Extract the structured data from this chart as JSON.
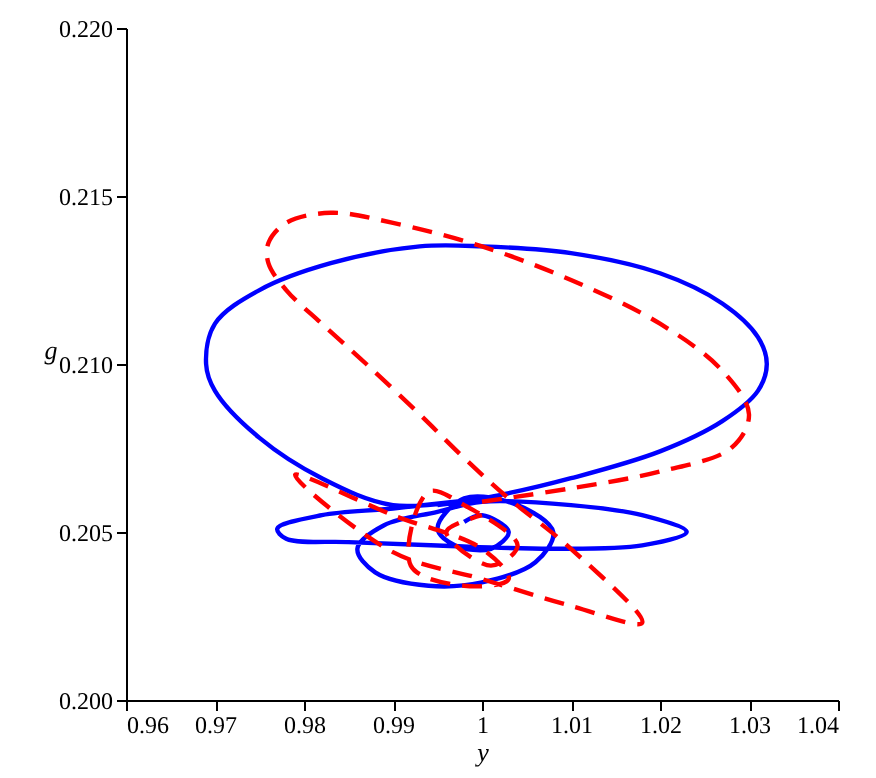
{
  "chart_data": {
    "type": "line",
    "xlabel": "y",
    "ylabel": "g",
    "grid": false,
    "marker": "none",
    "xlim": [
      0.96,
      1.04
    ],
    "xticks": [
      0.96,
      0.97,
      0.98,
      0.99,
      1,
      1.01,
      1.02,
      1.03,
      1.04
    ],
    "ylim": [
      0.2,
      0.22
    ],
    "yticks": [
      {
        "value": 0.2,
        "label": "0.200"
      },
      {
        "value": 0.205,
        "label": "0.205"
      },
      {
        "value": 0.21,
        "label": "0.210"
      },
      {
        "value": 0.215,
        "label": "0.215"
      },
      {
        "value": 0.22,
        "label": "0.220"
      }
    ],
    "series": [
      {
        "color": "#0000ff",
        "line_style": "solid",
        "x": [
          0.998,
          1.0,
          1.003,
          1.001,
          0.997,
          0.995,
          0.998,
          1.004,
          1.008,
          1.006,
          1.0,
          0.994,
          0.988,
          0.986,
          0.989,
          0.995,
          1.0,
          1.01,
          1.018,
          1.023,
          1.018,
          1.008,
          0.995,
          0.985,
          0.978,
          0.977,
          0.982,
          0.99,
          1.0,
          0.99,
          0.982,
          0.975,
          0.97,
          0.969,
          0.97,
          0.975,
          0.983,
          0.993,
          1.0,
          1.01,
          1.02,
          1.027,
          1.031,
          1.032,
          1.031,
          1.027,
          1.02,
          1.01,
          1.002,
          0.995
        ],
        "values": [
          0.2053,
          0.2055,
          0.205,
          0.2045,
          0.2046,
          0.2051,
          0.206,
          0.2058,
          0.205,
          0.2041,
          0.2035,
          0.2034,
          0.2038,
          0.2045,
          0.2052,
          0.2056,
          0.2059,
          0.2058,
          0.2055,
          0.205,
          0.2046,
          0.2045,
          0.2046,
          0.2047,
          0.2048,
          0.2051,
          0.2055,
          0.2057,
          0.206,
          0.2058,
          0.2066,
          0.2078,
          0.2092,
          0.21,
          0.2112,
          0.2122,
          0.213,
          0.2135,
          0.2135,
          0.2133,
          0.2127,
          0.2118,
          0.2108,
          0.21,
          0.2092,
          0.2083,
          0.2074,
          0.2066,
          0.2061,
          0.2058
        ]
      },
      {
        "color": "#ff0000",
        "line_style": "dashed",
        "x": [
          1.0,
          1.01,
          1.02,
          1.028,
          1.03,
          1.027,
          1.02,
          1.01,
          1.0,
          0.99,
          0.983,
          0.978,
          0.976,
          0.976,
          0.978,
          0.982,
          0.987,
          0.993,
          0.998,
          1.003,
          1.01,
          1.018,
          1.01,
          1.0,
          0.99,
          0.979,
          0.99,
          1.0,
          1.003,
          0.998,
          0.992,
          0.994,
          0.998,
          1.004,
          1.001,
          0.996,
          1.0
        ],
        "values": [
          0.2059,
          0.2063,
          0.2068,
          0.2075,
          0.2085,
          0.2098,
          0.2112,
          0.2125,
          0.2135,
          0.2142,
          0.2145,
          0.2142,
          0.2136,
          0.213,
          0.2122,
          0.2112,
          0.21,
          0.2085,
          0.2072,
          0.206,
          0.2045,
          0.2023,
          0.2028,
          0.2036,
          0.2044,
          0.2067,
          0.2055,
          0.2045,
          0.2036,
          0.2034,
          0.204,
          0.2062,
          0.2058,
          0.2046,
          0.204,
          0.205,
          0.2055
        ]
      }
    ]
  }
}
